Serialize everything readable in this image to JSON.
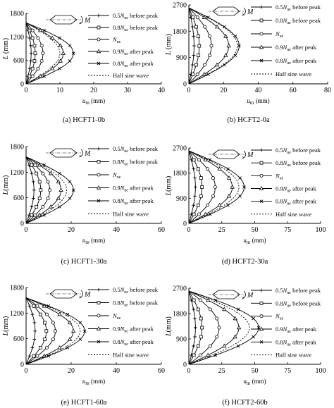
{
  "legend_entries": [
    {
      "key": "s05",
      "main": "0.5",
      "sub": "ue",
      "tail": " before peak",
      "marker": "plus",
      "dash": ""
    },
    {
      "key": "s08b",
      "main": "0.8",
      "sub": "ue",
      "tail": " before peak",
      "marker": "square",
      "dash": ""
    },
    {
      "key": "s1",
      "main": "",
      "sub": "ue",
      "tail": "",
      "marker": "circle",
      "dash": ""
    },
    {
      "key": "s09",
      "main": "0.9",
      "sub": "ue",
      "tail": " after peak",
      "marker": "triangle",
      "dash": ""
    },
    {
      "key": "s08a",
      "main": "0.8",
      "sub": "ue",
      "tail": " after peak",
      "marker": "cross",
      "dash": ""
    },
    {
      "key": "sine",
      "main": "",
      "sub": "",
      "tail": "Half sine wave",
      "marker": "none",
      "dash": "2,2"
    }
  ],
  "chart_data": [
    {
      "type": "line",
      "caption": "(a) HCFT1-0b",
      "xlabel": "u",
      "xlabel_sub": "m",
      "xlabel_unit": " (mm)",
      "ylabel": "L",
      "ylabel_unit": " (mm)",
      "xlim": [
        0,
        40
      ],
      "xticks": [
        0,
        10,
        20,
        30,
        40
      ],
      "ylim": [
        0,
        1800
      ],
      "yticks": [
        0,
        600,
        1200,
        1800
      ],
      "length": 1560,
      "series": [
        {
          "key": "s05",
          "peak": 1.5
        },
        {
          "key": "s08b",
          "peak": 2.7
        },
        {
          "key": "s1",
          "peak": 5.0
        },
        {
          "key": "s09",
          "peak": 11.0
        },
        {
          "key": "s08a",
          "peak": 14.0
        },
        {
          "key": "sine",
          "peak": 10.0
        }
      ]
    },
    {
      "type": "line",
      "caption": "(b) HCFT2-0a",
      "xlabel": "u",
      "xlabel_sub": "m",
      "xlabel_unit": " (mm)",
      "ylabel": "L",
      "ylabel_unit": " (mm)",
      "xlim": [
        0,
        80
      ],
      "xticks": [
        0,
        20,
        40,
        60,
        80
      ],
      "ylim": [
        0,
        2700
      ],
      "yticks": [
        0,
        900,
        1800,
        2700
      ],
      "length": 2600,
      "series": [
        {
          "key": "s05",
          "peak": 3.0
        },
        {
          "key": "s08b",
          "peak": 6.0
        },
        {
          "key": "s1",
          "peak": 13.0
        },
        {
          "key": "s09",
          "peak": 23.0
        },
        {
          "key": "s08a",
          "peak": 29.0
        },
        {
          "key": "sine",
          "peak": 28.0
        }
      ]
    },
    {
      "type": "line",
      "caption": "(c) HCFT1-30a",
      "xlabel": "u",
      "xlabel_sub": "m",
      "xlabel_unit": " (mm)",
      "ylabel": "L",
      "ylabel_unit": "(mm)",
      "xlim": [
        0,
        60
      ],
      "xticks": [
        0,
        20,
        40,
        60
      ],
      "ylim": [
        0,
        1800
      ],
      "yticks": [
        0,
        600,
        1200,
        1800
      ],
      "length": 1560,
      "series": [
        {
          "key": "s05",
          "peak": 3.5
        },
        {
          "key": "s08b",
          "peak": 6.5
        },
        {
          "key": "s1",
          "peak": 10.5
        },
        {
          "key": "s09",
          "peak": 15.5
        },
        {
          "key": "s08a",
          "peak": 21.0
        },
        {
          "key": "sine",
          "peak": 18.0
        }
      ]
    },
    {
      "type": "line",
      "caption": "(d) HCFT2-30a",
      "xlabel": "u",
      "xlabel_sub": "m",
      "xlabel_unit": " (mm)",
      "ylabel": "L",
      "ylabel_unit": "(mm)",
      "xlim": [
        0,
        100
      ],
      "xticks": [
        0,
        25,
        50,
        75,
        100
      ],
      "ylim": [
        0,
        2700
      ],
      "yticks": [
        0,
        900,
        1800,
        2700
      ],
      "length": 2600,
      "series": [
        {
          "key": "s05",
          "peak": 5.0
        },
        {
          "key": "s08b",
          "peak": 10.0
        },
        {
          "key": "s1",
          "peak": 20.0
        },
        {
          "key": "s09",
          "peak": 33.0
        },
        {
          "key": "s08a",
          "peak": 42.0
        },
        {
          "key": "sine",
          "peak": 38.0
        }
      ]
    },
    {
      "type": "line",
      "caption": "(e) HCFT1-60a",
      "xlabel": "u",
      "xlabel_sub": "m",
      "xlabel_unit": " (mm)",
      "ylabel": "L",
      "ylabel_unit": "(mm)",
      "xlim": [
        0,
        60
      ],
      "xticks": [
        0,
        20,
        40,
        60
      ],
      "ylim": [
        0,
        1800
      ],
      "yticks": [
        0,
        600,
        1200,
        1800
      ],
      "length": 1560,
      "series": [
        {
          "key": "s05",
          "peak": 4.0
        },
        {
          "key": "s08b",
          "peak": 9.0
        },
        {
          "key": "s1",
          "peak": 13.0
        },
        {
          "key": "s09",
          "peak": 21.0
        },
        {
          "key": "s08a",
          "peak": 26.0
        },
        {
          "key": "sine",
          "peak": 24.0
        }
      ]
    },
    {
      "type": "line",
      "caption": "(f) HCFT2-60b",
      "xlabel": "u",
      "xlabel_sub": "m",
      "xlabel_unit": " (mm)",
      "ylabel": "L",
      "ylabel_unit": "(mm)",
      "xlim": [
        0,
        100
      ],
      "xticks": [
        0,
        25,
        50,
        75,
        100
      ],
      "ylim": [
        0,
        2700
      ],
      "yticks": [
        0,
        900,
        1800,
        2700
      ],
      "length": 2600,
      "series": [
        {
          "key": "s05",
          "peak": 5.0
        },
        {
          "key": "s08b",
          "peak": 10.0
        },
        {
          "key": "s1",
          "peak": 23.0
        },
        {
          "key": "s09",
          "peak": 38.0
        },
        {
          "key": "s08a",
          "peak": 53.0
        },
        {
          "key": "sine",
          "peak": 46.0
        }
      ]
    }
  ],
  "moment_label": "M",
  "legend_N": "N"
}
